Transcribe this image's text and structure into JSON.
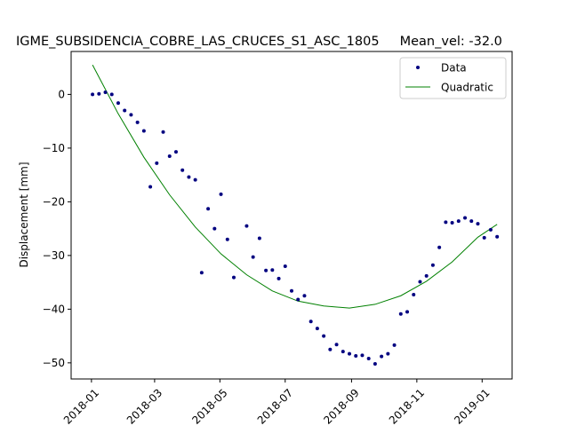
{
  "chart_data": {
    "type": "scatter",
    "title": "IGME_SUBSIDENCIA_COBRE_LAS_CRUCES_S1_ASC_1805     Mean_vel: -32.0",
    "xlabel": "",
    "ylabel": "Displacement [mm]",
    "xlim": [
      "2017-12-13",
      "2019-01-29"
    ],
    "ylim": [
      -53,
      8
    ],
    "x_ticks": [
      "2018-01",
      "2018-03",
      "2018-05",
      "2018-07",
      "2018-09",
      "2018-11",
      "2019-01"
    ],
    "y_ticks": [
      0,
      -10,
      -20,
      -30,
      -40,
      -50
    ],
    "grid": false,
    "legend_position": "top-right",
    "series": [
      {
        "name": "Data",
        "kind": "markers",
        "color": "#000080",
        "points": [
          [
            "2018-01-02",
            0.0
          ],
          [
            "2018-01-08",
            0.1
          ],
          [
            "2018-01-14",
            0.4
          ],
          [
            "2018-01-20",
            0.0
          ],
          [
            "2018-01-26",
            -1.6
          ],
          [
            "2018-02-01",
            -3.0
          ],
          [
            "2018-02-07",
            -3.8
          ],
          [
            "2018-02-13",
            -5.2
          ],
          [
            "2018-02-19",
            -6.8
          ],
          [
            "2018-02-25",
            -17.2
          ],
          [
            "2018-03-03",
            -12.8
          ],
          [
            "2018-03-09",
            -7.0
          ],
          [
            "2018-03-15",
            -11.5
          ],
          [
            "2018-03-21",
            -10.7
          ],
          [
            "2018-03-27",
            -14.1
          ],
          [
            "2018-04-02",
            -15.4
          ],
          [
            "2018-04-08",
            -15.9
          ],
          [
            "2018-04-14",
            -33.2
          ],
          [
            "2018-04-20",
            -21.3
          ],
          [
            "2018-04-26",
            -25.0
          ],
          [
            "2018-05-02",
            -18.6
          ],
          [
            "2018-05-08",
            -27.0
          ],
          [
            "2018-05-14",
            -34.1
          ],
          [
            "2018-05-26",
            -24.5
          ],
          [
            "2018-06-01",
            -30.3
          ],
          [
            "2018-06-07",
            -26.8
          ],
          [
            "2018-06-13",
            -32.8
          ],
          [
            "2018-06-19",
            -32.7
          ],
          [
            "2018-06-25",
            -34.3
          ],
          [
            "2018-07-01",
            -32.0
          ],
          [
            "2018-07-07",
            -36.6
          ],
          [
            "2018-07-13",
            -38.2
          ],
          [
            "2018-07-19",
            -37.5
          ],
          [
            "2018-07-25",
            -42.3
          ],
          [
            "2018-07-31",
            -43.6
          ],
          [
            "2018-08-06",
            -45.0
          ],
          [
            "2018-08-12",
            -47.5
          ],
          [
            "2018-08-18",
            -46.6
          ],
          [
            "2018-08-24",
            -47.9
          ],
          [
            "2018-08-30",
            -48.3
          ],
          [
            "2018-09-05",
            -48.7
          ],
          [
            "2018-09-11",
            -48.6
          ],
          [
            "2018-09-17",
            -49.2
          ],
          [
            "2018-09-23",
            -50.2
          ],
          [
            "2018-09-29",
            -48.8
          ],
          [
            "2018-10-05",
            -48.3
          ],
          [
            "2018-10-11",
            -46.7
          ],
          [
            "2018-10-17",
            -40.9
          ],
          [
            "2018-10-23",
            -40.5
          ],
          [
            "2018-10-29",
            -37.3
          ],
          [
            "2018-11-04",
            -34.9
          ],
          [
            "2018-11-10",
            -33.8
          ],
          [
            "2018-11-16",
            -31.8
          ],
          [
            "2018-11-22",
            -28.5
          ],
          [
            "2018-11-28",
            -23.8
          ],
          [
            "2018-12-04",
            -23.9
          ],
          [
            "2018-12-10",
            -23.6
          ],
          [
            "2018-12-16",
            -23.0
          ],
          [
            "2018-12-22",
            -23.6
          ],
          [
            "2018-12-28",
            -24.1
          ],
          [
            "2019-01-03",
            -26.7
          ],
          [
            "2019-01-09",
            -25.2
          ],
          [
            "2019-01-15",
            -26.5
          ]
        ]
      },
      {
        "name": "Quadratic",
        "kind": "line",
        "color": "#008000",
        "points": [
          [
            "2018-01-02",
            5.5
          ],
          [
            "2018-01-26",
            -3.6
          ],
          [
            "2018-02-19",
            -11.7
          ],
          [
            "2018-03-15",
            -18.7
          ],
          [
            "2018-04-08",
            -24.7
          ],
          [
            "2018-05-02",
            -29.7
          ],
          [
            "2018-05-26",
            -33.6
          ],
          [
            "2018-06-19",
            -36.6
          ],
          [
            "2018-07-13",
            -38.5
          ],
          [
            "2018-08-06",
            -39.4
          ],
          [
            "2018-08-30",
            -39.8
          ],
          [
            "2018-09-23",
            -39.1
          ],
          [
            "2018-10-17",
            -37.5
          ],
          [
            "2018-11-10",
            -34.8
          ],
          [
            "2018-12-04",
            -31.2
          ],
          [
            "2018-12-28",
            -26.6
          ],
          [
            "2019-01-15",
            -24.2
          ]
        ]
      }
    ]
  }
}
